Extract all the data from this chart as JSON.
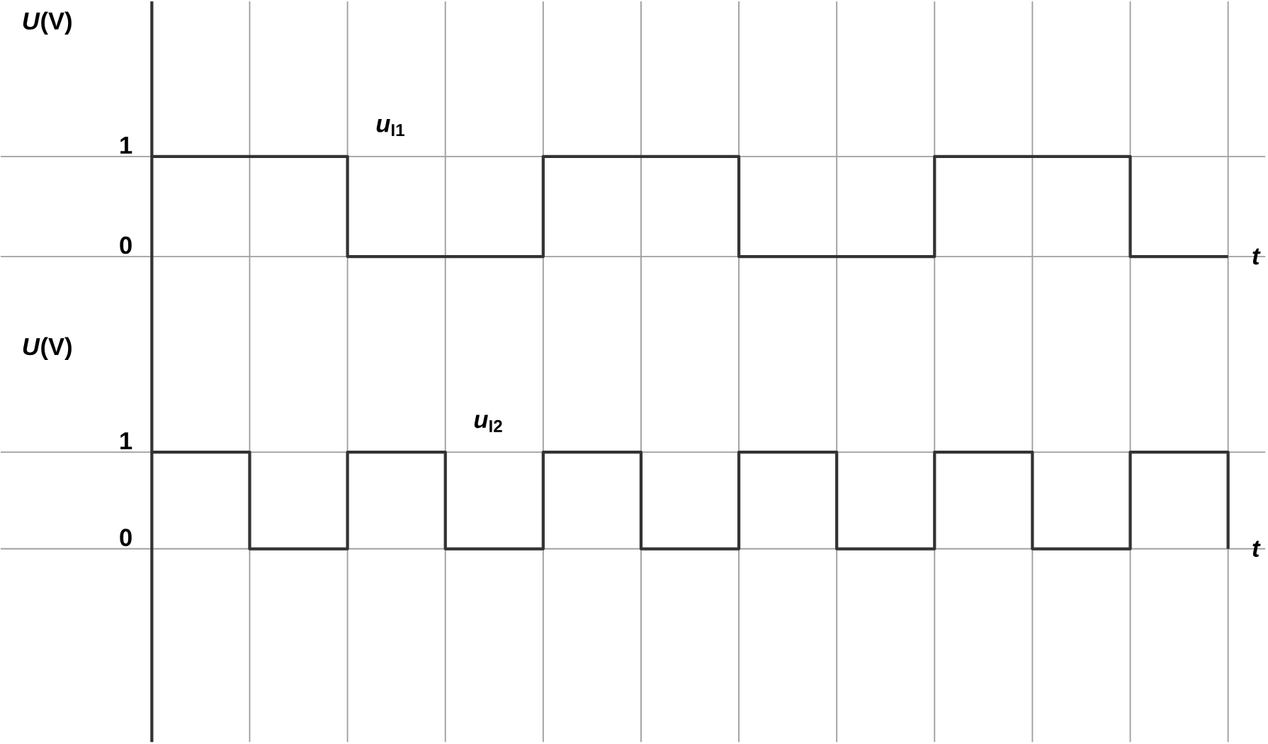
{
  "chart_data": [
    {
      "type": "step",
      "categories": [
        null,
        null,
        null,
        null,
        null,
        null,
        null,
        null,
        null,
        null,
        null,
        null
      ],
      "ylabel": "*U*(V)",
      "xlabel": "t",
      "ylim": [
        -0.7,
        2.55
      ],
      "yticks": [
        0,
        1
      ],
      "grid": true,
      "tick_labels": "y",
      "series": [
        {
          "name": "*u*$_{I1}$",
          "color": "#333333",
          "values": [
            1,
            1,
            0,
            0,
            1,
            1,
            0,
            0,
            1,
            1,
            0,
            0
          ]
        }
      ]
    },
    {
      "type": "step",
      "categories": [
        null,
        null,
        null,
        null,
        null,
        null,
        null,
        null,
        null,
        null,
        null,
        null
      ],
      "ylabel": "*U*(V)",
      "xlabel": "t",
      "ylim": [
        -2.0,
        2.3
      ],
      "yticks": [
        0,
        1
      ],
      "grid": true,
      "tick_labels": "y",
      "series": [
        {
          "name": "*u*$_{I2}$",
          "color": "#333333",
          "values": [
            1,
            0,
            1,
            0,
            1,
            0,
            1,
            0,
            1,
            0,
            1,
            0
          ]
        }
      ]
    }
  ]
}
